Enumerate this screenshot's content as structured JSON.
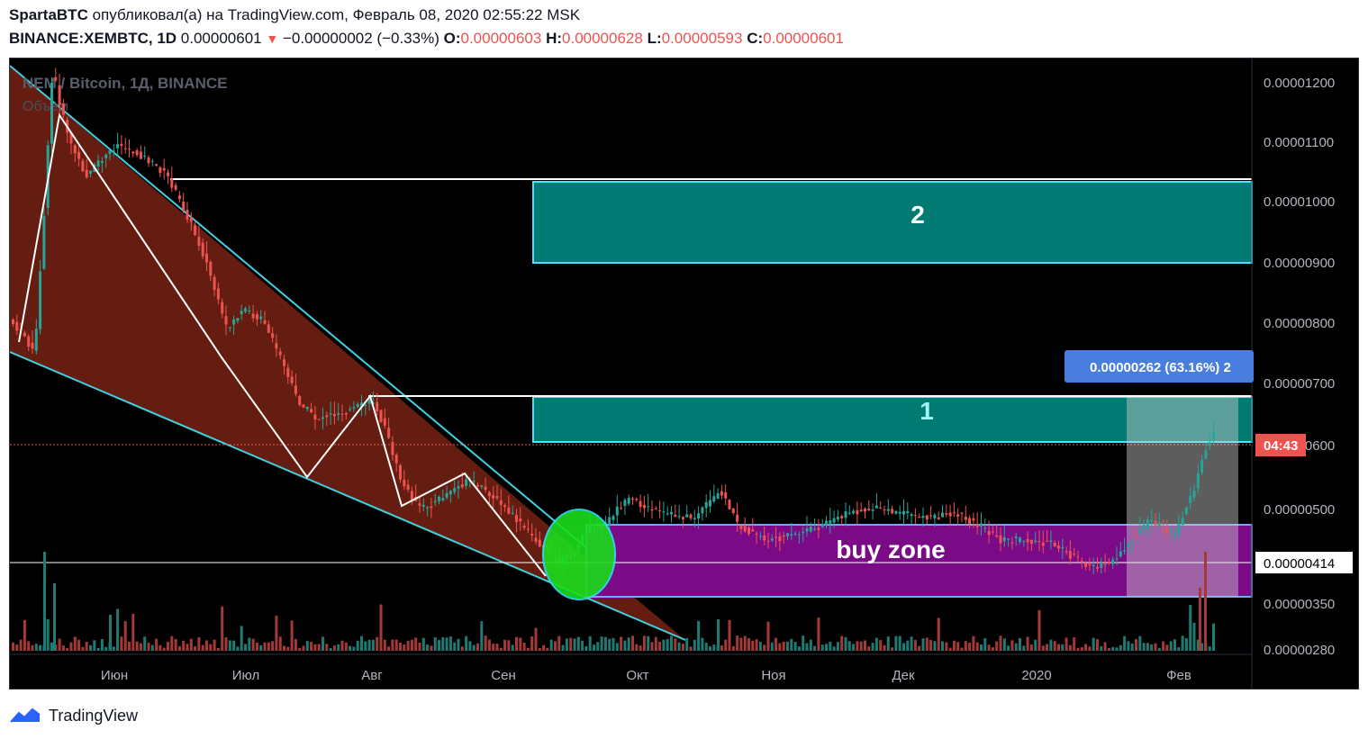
{
  "header": {
    "author": "SpartaBTC",
    "published_text": "опубликовал(а) на TradingView.com, Февраль 08, 2020 02:55:22 MSK",
    "symbol": "BINANCE:XEMBTC, 1D",
    "last": "0.00000601",
    "change": "−0.00000002 (−0.33%)",
    "o_label": "O:",
    "o_value": "0.00000603",
    "h_label": "H:",
    "h_value": "0.00000628",
    "l_label": "L:",
    "l_value": "0.00000593",
    "c_label": "C:",
    "c_value": "0.00000601"
  },
  "chart": {
    "watermark_title": "NEM / Bitcoin, 1Д, BINANCE",
    "watermark_sub": "Объем",
    "zone2_label": "2",
    "zone1_label": "1",
    "buy_zone_label": "buy zone",
    "measure_label": "0.00000262 (63.16%) 2",
    "countdown_label": "04:43",
    "crosshair_price": "0.00000414",
    "colors": {
      "background": "#000000",
      "up": "#26a69a",
      "down": "#ef5350",
      "channel_fill": "#6b1f12",
      "channel_line": "#3fd0e0",
      "target_zone": "#007a72",
      "buy_zone": "#7a0a86",
      "ellipse": "#22dd22",
      "measure": "#4a7ede"
    }
  },
  "chart_data": {
    "type": "candlestick",
    "title": "NEM / Bitcoin, 1Д, BINANCE",
    "y_axis_ticks": [
      "0.00001200",
      "0.00001100",
      "0.00001000",
      "0.00000900",
      "0.00000800",
      "0.00000700",
      "0.00000600",
      "0.00000500",
      "0.00000350",
      "0.00000280"
    ],
    "x_axis_ticks": [
      "Июн",
      "Июл",
      "Авг",
      "Сен",
      "Окт",
      "Ноя",
      "Дек",
      "2020",
      "Фев"
    ],
    "ylim": [
      2.8e-06,
      1.24e-05
    ],
    "zones": [
      {
        "name": "2",
        "from": 9e-06,
        "to": 1.033e-05
      },
      {
        "name": "1",
        "from": 6.1e-06,
        "to": 6.8e-06
      },
      {
        "name": "buy zone",
        "from": 3.6e-06,
        "to": 4.7e-06
      }
    ],
    "horizontal_lines": [
      1.038e-05,
      6.8e-06,
      4.14e-06
    ],
    "measure": {
      "value": 2.62e-06,
      "percent": 63.16
    },
    "last_price": 6.01e-06
  },
  "footer": {
    "brand": "TradingView"
  }
}
